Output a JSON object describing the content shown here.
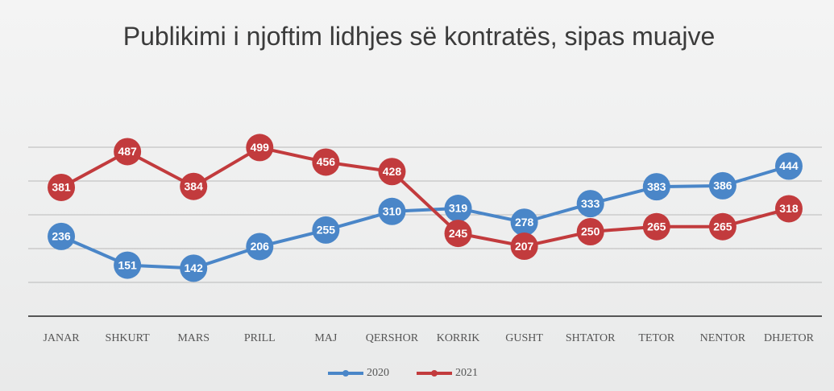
{
  "chart_data": {
    "type": "line",
    "title": "Publikimi i njoftim lidhjes së kontratës, sipas muajve",
    "categories": [
      "JANAR",
      "SHKURT",
      "MARS",
      "PRILL",
      "MAJ",
      "QERSHOR",
      "KORRIK",
      "GUSHT",
      "SHTATOR",
      "TETOR",
      "NENTOR",
      "DHJETOR"
    ],
    "series": [
      {
        "name": "2020",
        "color": "#4a86c8",
        "values": [
          236,
          151,
          142,
          206,
          255,
          310,
          319,
          278,
          333,
          383,
          386,
          444
        ]
      },
      {
        "name": "2021",
        "color": "#c23b3d",
        "values": [
          381,
          487,
          384,
          499,
          456,
          428,
          245,
          207,
          250,
          265,
          265,
          318
        ]
      }
    ],
    "ylim": [
      0,
      500
    ],
    "yticks": [
      0,
      100,
      200,
      300,
      400,
      500
    ],
    "grid": true,
    "legend": "bottom"
  }
}
